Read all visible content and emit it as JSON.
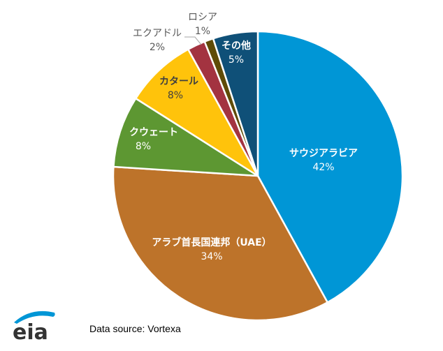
{
  "chart_data": {
    "type": "pie",
    "start": "top",
    "direction": "clockwise",
    "slices": [
      {
        "label": "サウジアラビア",
        "value": 42,
        "display": "42%",
        "color": "#0096D6"
      },
      {
        "label": "アラブ首長国連邦（UAE）",
        "value": 34,
        "display": "34%",
        "color": "#BD732A"
      },
      {
        "label": "クウェート",
        "value": 8,
        "display": "8%",
        "color": "#5D9732"
      },
      {
        "label": "カタール",
        "value": 8,
        "display": "8%",
        "color": "#FFC30B"
      },
      {
        "label": "エクアドル",
        "value": 2,
        "display": "2%",
        "color": "#A33340"
      },
      {
        "label": "ロシア",
        "value": 1,
        "display": "1%",
        "color": "#5F4B07"
      },
      {
        "label": "その他",
        "value": 5,
        "display": "5%",
        "color": "#0F5078"
      }
    ]
  },
  "source": "Data source: Vortexa",
  "logo": "eia"
}
